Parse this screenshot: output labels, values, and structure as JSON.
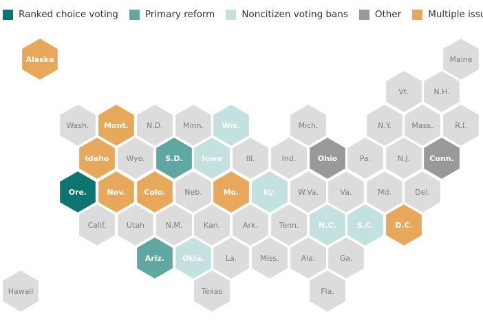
{
  "legend": [
    {
      "key": "rcv",
      "label": "Ranked choice voting",
      "color": "#0e7470"
    },
    {
      "key": "primary",
      "label": "Primary reform",
      "color": "#5ea8a1"
    },
    {
      "key": "noncitizen",
      "label": "Noncitizen voting bans",
      "color": "#c3e1de"
    },
    {
      "key": "other",
      "label": "Other",
      "color": "#999999"
    },
    {
      "key": "multiple",
      "label": "Multiple issues",
      "color": "#e8a85c"
    }
  ],
  "no_issue_color": "#dcdcdc",
  "states": [
    {
      "abbr": "Alaska",
      "category": "multiple"
    },
    {
      "abbr": "Maine",
      "category": "none"
    },
    {
      "abbr": "Vt.",
      "category": "none"
    },
    {
      "abbr": "N.H.",
      "category": "none"
    },
    {
      "abbr": "Wash.",
      "category": "none"
    },
    {
      "abbr": "Mont.",
      "category": "multiple"
    },
    {
      "abbr": "N.D.",
      "category": "none"
    },
    {
      "abbr": "Minn.",
      "category": "none"
    },
    {
      "abbr": "Wis.",
      "category": "noncitizen"
    },
    {
      "abbr": "Mich.",
      "category": "none"
    },
    {
      "abbr": "N.Y.",
      "category": "none"
    },
    {
      "abbr": "Mass.",
      "category": "none"
    },
    {
      "abbr": "R.I.",
      "category": "none"
    },
    {
      "abbr": "Idaho",
      "category": "multiple"
    },
    {
      "abbr": "Wyo.",
      "category": "none"
    },
    {
      "abbr": "S.D.",
      "category": "primary"
    },
    {
      "abbr": "Iowa",
      "category": "noncitizen"
    },
    {
      "abbr": "Ill.",
      "category": "none"
    },
    {
      "abbr": "Ind.",
      "category": "none"
    },
    {
      "abbr": "Ohio",
      "category": "other"
    },
    {
      "abbr": "Pa.",
      "category": "none"
    },
    {
      "abbr": "N.J.",
      "category": "none"
    },
    {
      "abbr": "Conn.",
      "category": "other"
    },
    {
      "abbr": "Ore.",
      "category": "rcv"
    },
    {
      "abbr": "Nev.",
      "category": "multiple"
    },
    {
      "abbr": "Colo.",
      "category": "multiple"
    },
    {
      "abbr": "Neb.",
      "category": "none"
    },
    {
      "abbr": "Mo.",
      "category": "multiple"
    },
    {
      "abbr": "Ky.",
      "category": "noncitizen"
    },
    {
      "abbr": "W.Va.",
      "category": "none"
    },
    {
      "abbr": "Va.",
      "category": "none"
    },
    {
      "abbr": "Md.",
      "category": "none"
    },
    {
      "abbr": "Del.",
      "category": "none"
    },
    {
      "abbr": "Calif.",
      "category": "none"
    },
    {
      "abbr": "Utah",
      "category": "none"
    },
    {
      "abbr": "N.M.",
      "category": "none"
    },
    {
      "abbr": "Kan.",
      "category": "none"
    },
    {
      "abbr": "Ark.",
      "category": "none"
    },
    {
      "abbr": "Tenn.",
      "category": "none"
    },
    {
      "abbr": "N.C.",
      "category": "noncitizen"
    },
    {
      "abbr": "S.C.",
      "category": "noncitizen"
    },
    {
      "abbr": "D.C.",
      "category": "multiple"
    },
    {
      "abbr": "Ariz.",
      "category": "primary"
    },
    {
      "abbr": "Okla.",
      "category": "noncitizen"
    },
    {
      "abbr": "La.",
      "category": "none"
    },
    {
      "abbr": "Miss.",
      "category": "none"
    },
    {
      "abbr": "Ala.",
      "category": "none"
    },
    {
      "abbr": "Ga.",
      "category": "none"
    },
    {
      "abbr": "Hawaii",
      "category": "none"
    },
    {
      "abbr": "Texas",
      "category": "none"
    },
    {
      "abbr": "Fla.",
      "category": "none"
    }
  ]
}
